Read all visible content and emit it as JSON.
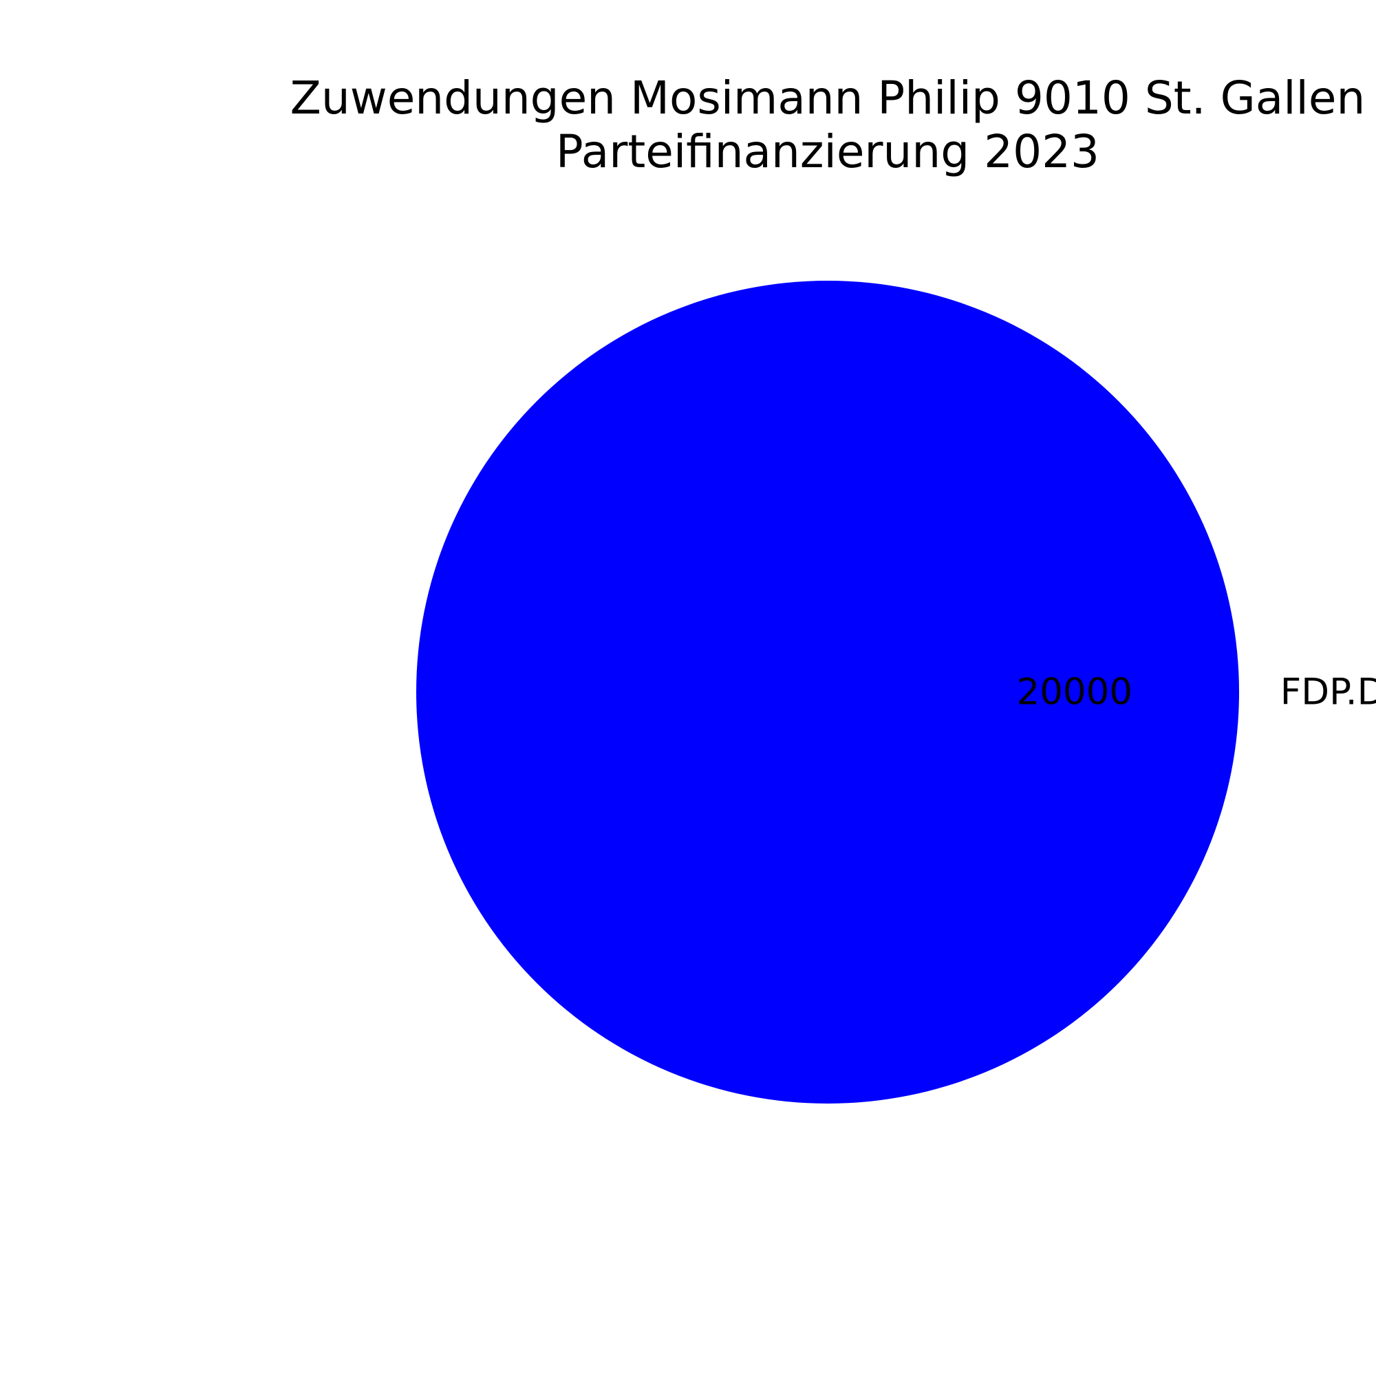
{
  "chart_data": {
    "type": "pie",
    "title": {
      "line1": "Zuwendungen Mosimann Philip 9010 St. Gallen",
      "line2": "Parteifinanzierung 2023"
    },
    "slices": [
      {
        "label": "FDP.Die Liberalen",
        "value": 20000,
        "value_label": "20000",
        "color": "#0000ff"
      }
    ]
  }
}
